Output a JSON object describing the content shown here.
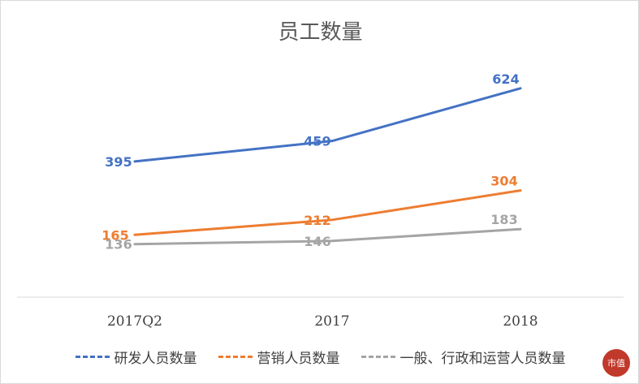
{
  "chart_data": {
    "type": "line",
    "title": "员工数量",
    "categories": [
      "2017Q2",
      "2017",
      "2018"
    ],
    "series": [
      {
        "name": "研发人员数量",
        "values": [
          395,
          459,
          624
        ],
        "color": "#4472c4"
      },
      {
        "name": "营销人员数量",
        "values": [
          165,
          212,
          304
        ],
        "color": "#ed7d31"
      },
      {
        "name": "一般、行政和运营人员数量",
        "values": [
          136,
          146,
          183
        ],
        "color": "#a5a5a5"
      }
    ],
    "xlabel": "",
    "ylabel": "",
    "ylim": [
      -30,
      720
    ],
    "grid": false,
    "legend": "bottom",
    "data_labels": true
  },
  "watermark_badge": "市值"
}
